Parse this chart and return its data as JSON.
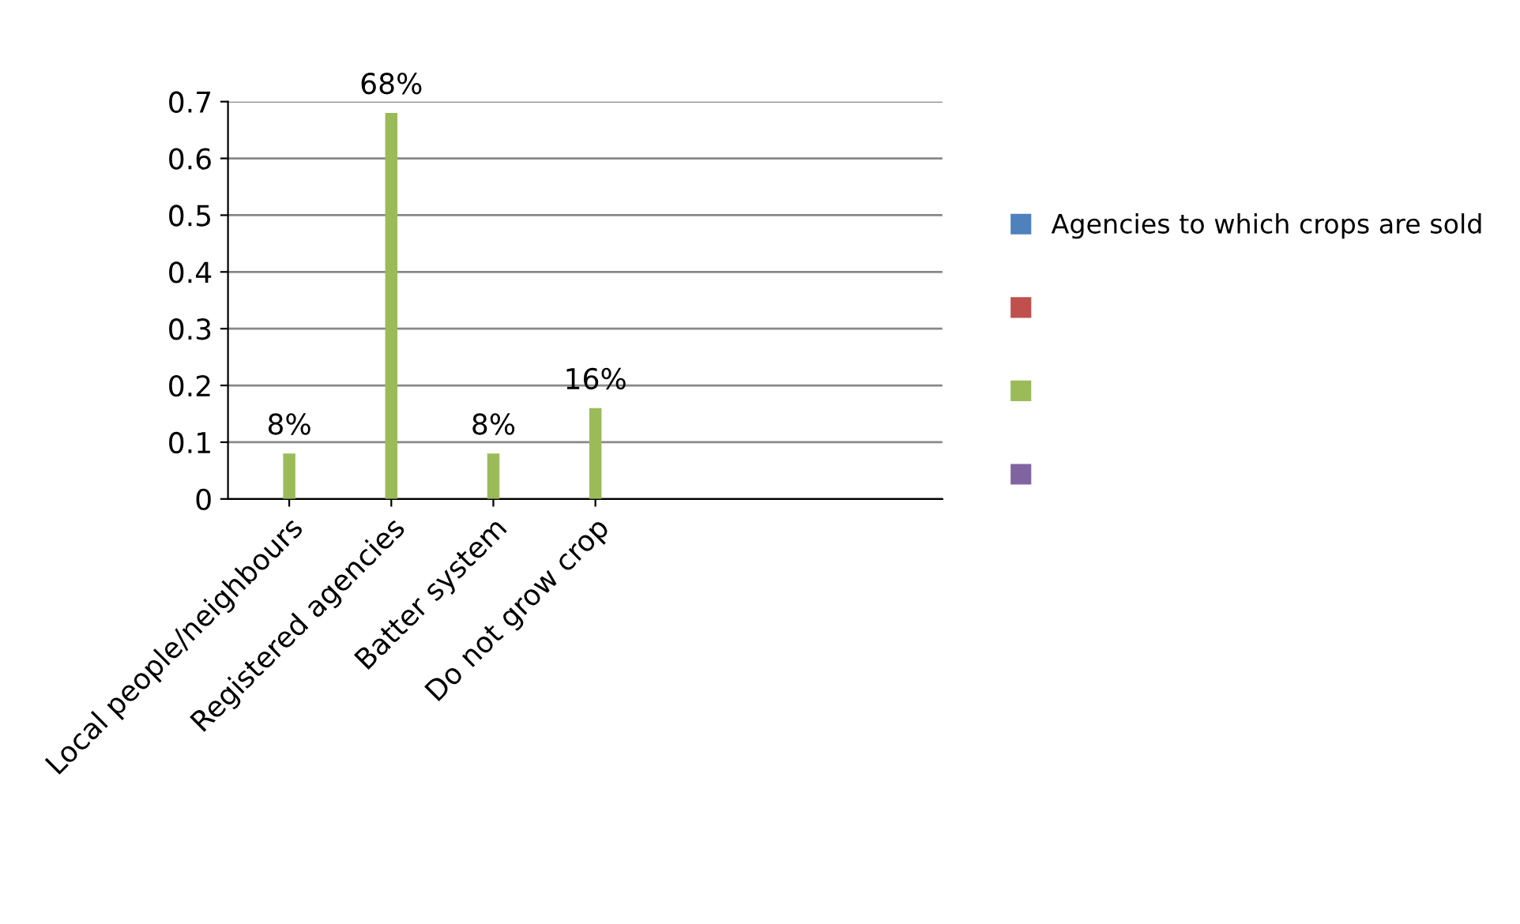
{
  "chart_data": {
    "type": "bar",
    "categories": [
      "Local people/neighbours",
      "Registered agencies",
      "Batter system",
      "Do not grow crop"
    ],
    "series": [
      {
        "name": "Agencies to which crops are sold",
        "color": "#4f81bd",
        "values": [
          null,
          null,
          null,
          null
        ]
      },
      {
        "color": "#c0504d",
        "values": [
          null,
          null,
          null,
          null
        ]
      },
      {
        "color": "#9bbb59",
        "values": [
          0.08,
          0.68,
          0.08,
          0.16
        ],
        "value_labels": [
          "8%",
          "68%",
          "8%",
          "16%"
        ]
      },
      {
        "color": "#8064a2",
        "values": [
          null,
          null,
          null,
          null
        ]
      }
    ],
    "ylim": [
      0,
      0.7
    ],
    "yticks": [
      0,
      0.1,
      0.2,
      0.3,
      0.4,
      0.5,
      0.6,
      0.7
    ],
    "grid": "y",
    "legend": "right"
  }
}
